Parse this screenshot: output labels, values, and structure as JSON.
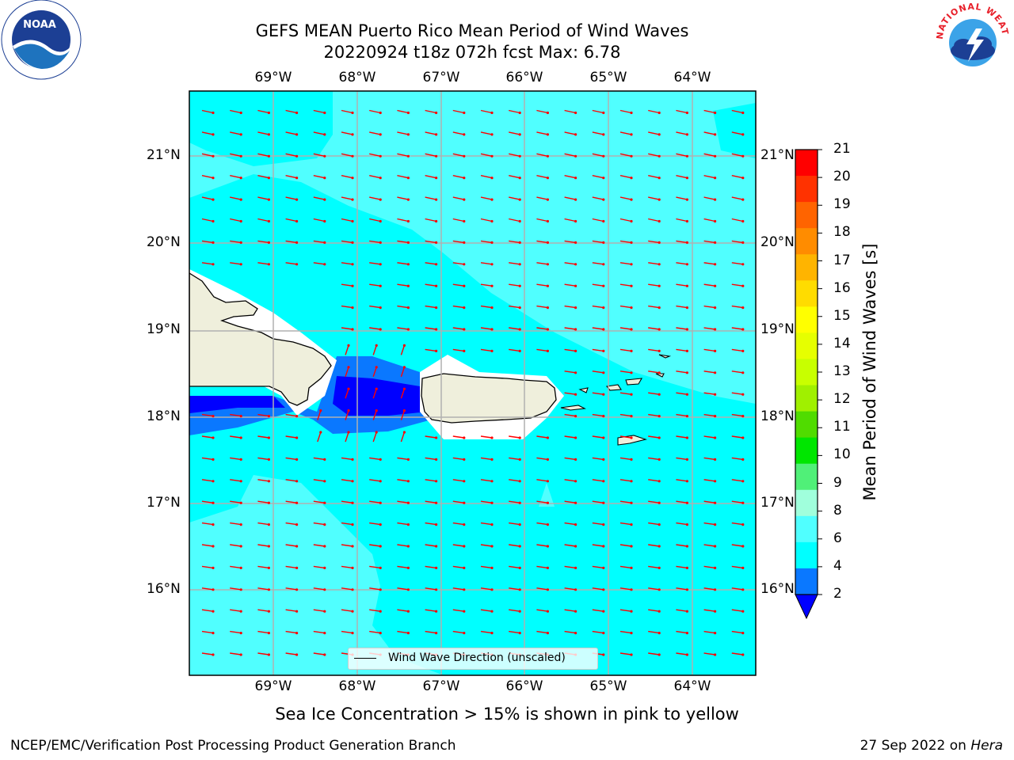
{
  "title_line1": "GEFS MEAN Puerto Rico Mean Period of Wind Waves",
  "title_line2": "20220924 t18z 072h fcst   Max: 6.78",
  "lon_labels": [
    "69°W",
    "68°W",
    "67°W",
    "66°W",
    "65°W",
    "64°W"
  ],
  "lat_labels": [
    "21°N",
    "20°N",
    "19°N",
    "18°N",
    "17°N",
    "16°N"
  ],
  "colorbar": {
    "label": "Mean Period of Wind Waves [s]",
    "ticks": [
      "21",
      "20",
      "19",
      "18",
      "17",
      "16",
      "15",
      "14",
      "13",
      "12",
      "11",
      "10",
      "9",
      "8",
      "6",
      "4",
      "2"
    ],
    "colors": [
      "#ff0000",
      "#ff3200",
      "#ff6400",
      "#ff8c00",
      "#ffb400",
      "#ffdc00",
      "#ffff00",
      "#e6ff00",
      "#c8ff00",
      "#a0f000",
      "#50dc00",
      "#00e600",
      "#50f078",
      "#a0ffdc",
      "#50ffff",
      "#00ffff",
      "#0a78ff",
      "#0000ff"
    ]
  },
  "legend": {
    "label": "Wind Wave Direction (unscaled)"
  },
  "subnote": "Sea Ice Concentration > 15% is shown in pink to yellow",
  "footer_left": "NCEP/EMC/Verification Post Processing Product Generation Branch",
  "footer_date": "27 Sep 2022 on ",
  "footer_host": "Hera",
  "map_colors": {
    "ocean": "#00ffff",
    "light": "#50ffff",
    "mid": "#0a78ff",
    "deep": "#0000ff",
    "land": "#efefdc",
    "arrow": "#ff0000"
  },
  "logos": {
    "noaa": "NOAA",
    "nws": "NATIONAL WEATHER SERVICE"
  }
}
